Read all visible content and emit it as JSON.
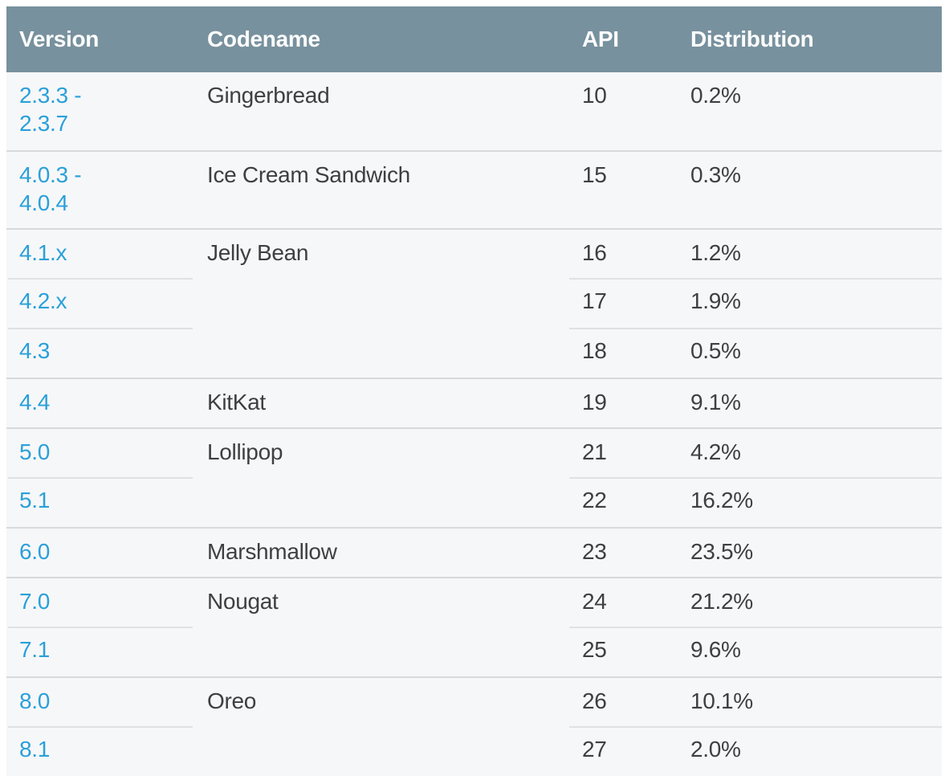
{
  "table": {
    "colors": {
      "header_bg": "#78919e",
      "header_text": "#fcfdfd",
      "row_bg": "#f6f7f9",
      "page_bg": "#ffffff",
      "text": "#3c4043",
      "link": "#2aa0d8",
      "divider_full": "#d6dadc",
      "divider_partial": "#dfe2e4"
    },
    "columns": [
      {
        "key": "version",
        "label": "Version"
      },
      {
        "key": "codename",
        "label": "Codename"
      },
      {
        "key": "api",
        "label": "API"
      },
      {
        "key": "distribution",
        "label": "Distribution"
      }
    ],
    "rows": [
      {
        "version": [
          "2.3.3 -",
          "2.3.7"
        ],
        "codename": "Gingerbread",
        "api": "10",
        "distribution": "0.2%",
        "divider": "none",
        "two_line": true
      },
      {
        "version": [
          "4.0.3 -",
          "4.0.4"
        ],
        "codename": "Ice Cream Sandwich",
        "api": "15",
        "distribution": "0.3%",
        "divider": "full",
        "two_line": true
      },
      {
        "version": [
          "4.1.x"
        ],
        "codename": "Jelly Bean",
        "api": "16",
        "distribution": "1.2%",
        "divider": "full",
        "two_line": false
      },
      {
        "version": [
          "4.2.x"
        ],
        "codename": "",
        "api": "17",
        "distribution": "1.9%",
        "divider": "partial",
        "two_line": false
      },
      {
        "version": [
          "4.3"
        ],
        "codename": "",
        "api": "18",
        "distribution": "0.5%",
        "divider": "partial",
        "two_line": false
      },
      {
        "version": [
          "4.4"
        ],
        "codename": "KitKat",
        "api": "19",
        "distribution": "9.1%",
        "divider": "full",
        "two_line": false
      },
      {
        "version": [
          "5.0"
        ],
        "codename": "Lollipop",
        "api": "21",
        "distribution": "4.2%",
        "divider": "full",
        "two_line": false
      },
      {
        "version": [
          "5.1"
        ],
        "codename": "",
        "api": "22",
        "distribution": "16.2%",
        "divider": "partial",
        "two_line": false
      },
      {
        "version": [
          "6.0"
        ],
        "codename": "Marshmallow",
        "api": "23",
        "distribution": "23.5%",
        "divider": "full",
        "two_line": false
      },
      {
        "version": [
          "7.0"
        ],
        "codename": "Nougat",
        "api": "24",
        "distribution": "21.2%",
        "divider": "full",
        "two_line": false
      },
      {
        "version": [
          "7.1"
        ],
        "codename": "",
        "api": "25",
        "distribution": "9.6%",
        "divider": "partial",
        "two_line": false
      },
      {
        "version": [
          "8.0"
        ],
        "codename": "Oreo",
        "api": "26",
        "distribution": "10.1%",
        "divider": "full",
        "two_line": false
      },
      {
        "version": [
          "8.1"
        ],
        "codename": "",
        "api": "27",
        "distribution": "2.0%",
        "divider": "partial",
        "two_line": false
      }
    ]
  }
}
